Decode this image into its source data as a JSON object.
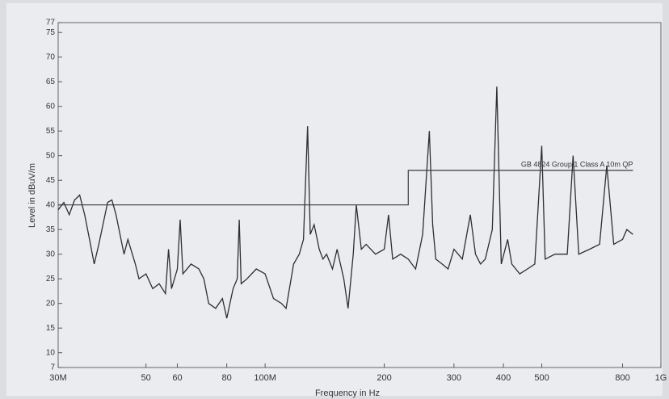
{
  "chart_data": {
    "type": "line",
    "xlabel": "Frequency in Hz",
    "ylabel": "Level in dBuV/m",
    "xscale": "log",
    "grid": false,
    "xlim": [
      30000000,
      1000000000
    ],
    "ylim": [
      7,
      77
    ],
    "xticks": [
      {
        "value": 30000000,
        "label": "30M"
      },
      {
        "value": 50000000,
        "label": "50"
      },
      {
        "value": 60000000,
        "label": "60"
      },
      {
        "value": 80000000,
        "label": "80"
      },
      {
        "value": 100000000,
        "label": "100M"
      },
      {
        "value": 200000000,
        "label": "200"
      },
      {
        "value": 300000000,
        "label": "300"
      },
      {
        "value": 400000000,
        "label": "400"
      },
      {
        "value": 500000000,
        "label": "500"
      },
      {
        "value": 800000000,
        "label": "800"
      },
      {
        "value": 1000000000,
        "label": "1G"
      }
    ],
    "yticks": [
      7,
      10,
      15,
      20,
      25,
      30,
      35,
      40,
      45,
      50,
      55,
      60,
      65,
      70,
      75,
      77
    ],
    "series": [
      {
        "color": "#2e2e33",
        "x": [
          30000000,
          31000000,
          32000000,
          33000000,
          34000000,
          35000000,
          36000000,
          37000000,
          38000000,
          40000000,
          41000000,
          42000000,
          44000000,
          45000000,
          47000000,
          48000000,
          50000000,
          52000000,
          54000000,
          56000000,
          57000000,
          58000000,
          60000000,
          61000000,
          62000000,
          65000000,
          68000000,
          70000000,
          72000000,
          75000000,
          78000000,
          80000000,
          83000000,
          85000000,
          86000000,
          87000000,
          90000000,
          95000000,
          100000000,
          105000000,
          110000000,
          113000000,
          118000000,
          122000000,
          125000000,
          128000000,
          130000000,
          133000000,
          137000000,
          140000000,
          143000000,
          148000000,
          152000000,
          158000000,
          162000000,
          167000000,
          170000000,
          175000000,
          180000000,
          190000000,
          200000000,
          205000000,
          210000000,
          220000000,
          230000000,
          240000000,
          250000000,
          260000000,
          265000000,
          270000000,
          280000000,
          290000000,
          300000000,
          315000000,
          330000000,
          340000000,
          350000000,
          360000000,
          375000000,
          385000000,
          395000000,
          410000000,
          420000000,
          440000000,
          460000000,
          480000000,
          500000000,
          510000000,
          540000000,
          580000000,
          600000000,
          620000000,
          660000000,
          700000000,
          730000000,
          760000000,
          800000000,
          820000000,
          850000000
        ],
        "values": [
          39,
          40.5,
          38,
          41,
          42,
          38,
          33,
          28,
          32,
          40.5,
          41,
          38,
          30,
          33,
          28,
          25,
          26,
          23,
          24,
          22,
          31,
          23,
          27,
          37,
          26,
          28,
          27,
          25,
          20,
          19,
          21,
          17,
          23,
          25,
          37,
          24,
          25,
          27,
          26,
          21,
          20,
          19,
          28,
          30,
          33,
          56,
          34,
          36,
          31,
          29,
          30,
          27,
          31,
          25,
          19,
          30,
          40,
          31,
          32,
          30,
          31,
          38,
          29,
          30,
          29,
          27,
          34,
          55,
          36,
          29,
          28,
          27,
          31,
          29,
          38,
          30,
          28,
          29,
          35,
          64,
          28,
          33,
          28,
          26,
          27,
          28,
          52,
          29,
          30,
          30,
          50,
          30,
          31,
          32,
          48,
          32,
          33,
          35,
          34
        ]
      },
      {
        "name": "GB 4824 Group 1 Class A 10m QP",
        "color": "#3a3a40",
        "x": [
          30000000,
          230000000,
          230000000,
          850000000
        ],
        "values": [
          40,
          40,
          47,
          47
        ]
      }
    ]
  }
}
